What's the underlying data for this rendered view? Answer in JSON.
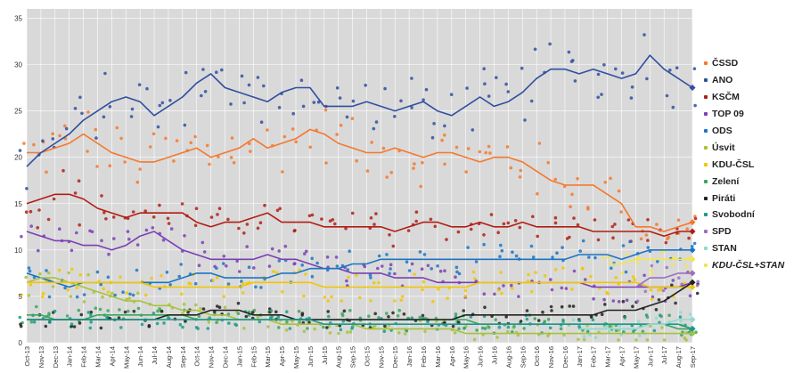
{
  "chart_data": {
    "type": "line",
    "title": "",
    "xlabel": "",
    "ylabel": "",
    "ylim": [
      0,
      36
    ],
    "yticks": [
      0,
      5,
      10,
      15,
      20,
      25,
      30,
      35
    ],
    "x_tick_labels": [
      "Oct-13",
      "Nov-13",
      "Dec-13",
      "Jan-14",
      "Feb-14",
      "Mar-14",
      "Apr-14",
      "May-14",
      "Jun-14",
      "Jul-14",
      "Aug-14",
      "Sep-14",
      "Oct-14",
      "Nov-14",
      "Dec-14",
      "Jan-15",
      "Feb-15",
      "Mar-15",
      "Apr-15",
      "May-15",
      "Jun-15",
      "Jul-15",
      "Aug-15",
      "Sep-15",
      "Oct-15",
      "Nov-15",
      "Dec-15",
      "Jan-16",
      "Feb-16",
      "Mar-16",
      "Apr-16",
      "May-16",
      "Jun-16",
      "Jul-16",
      "Aug-16",
      "Sep-16",
      "Oct-16",
      "Nov-16",
      "Dec-16",
      "Jan-17",
      "Feb-17",
      "Mar-17",
      "Apr-17",
      "May-17",
      "Jun-17",
      "Jul-17",
      "Aug-17",
      "Sep-17"
    ],
    "plot_background": "#d9d9d9",
    "grid": true,
    "legend_position": "right",
    "markers": "scattered poll points around trend lines",
    "series": [
      {
        "name": "ČSSD",
        "color": "#f5782d",
        "values": [
          20.5,
          20.5,
          21,
          21.5,
          22.5,
          21.5,
          20.5,
          20,
          19.5,
          19.5,
          20,
          20.5,
          21,
          20,
          20.5,
          21,
          22,
          21,
          21.5,
          22,
          23,
          22.5,
          21.5,
          21,
          20.5,
          20.5,
          21,
          20.5,
          20,
          20.5,
          20.5,
          20,
          19.5,
          20,
          20,
          19.5,
          18.5,
          17.5,
          17,
          17,
          17,
          16,
          15,
          12.5,
          12.5,
          12,
          12.5,
          13
        ]
      },
      {
        "name": "ANO",
        "color": "#2f4fa0",
        "values": [
          19,
          20.5,
          21.5,
          22.5,
          24,
          25,
          26,
          26.5,
          26,
          24.5,
          25.5,
          26.5,
          28,
          29,
          27.5,
          27,
          26.5,
          26,
          27,
          27.5,
          27.5,
          25.5,
          25.5,
          25.5,
          26,
          25.5,
          25,
          25.5,
          26,
          25,
          24.5,
          25.5,
          26.5,
          25.5,
          26,
          27,
          28.5,
          29.5,
          29.5,
          29,
          29.5,
          29,
          28.5,
          29,
          31,
          29.5,
          28.5,
          27.5
        ]
      },
      {
        "name": "KSČM",
        "color": "#b01e14",
        "values": [
          15,
          15.5,
          16,
          16,
          15.5,
          14.5,
          14,
          13.5,
          14,
          14,
          14,
          14,
          13,
          12.5,
          13,
          13,
          13.5,
          14,
          13,
          13,
          13,
          12.5,
          12.5,
          12.5,
          12.5,
          12.5,
          12,
          12.5,
          13,
          13,
          12.5,
          12.5,
          13,
          12.5,
          12.5,
          13,
          12.5,
          12.5,
          12.5,
          12.5,
          12,
          12,
          12,
          12,
          12,
          11.5,
          12,
          12
        ]
      },
      {
        "name": "TOP 09",
        "color": "#7b3fb4",
        "values": [
          12,
          11.5,
          11,
          11,
          10.5,
          10.5,
          10,
          10.5,
          11.5,
          12,
          11,
          10,
          9.5,
          9,
          9,
          9,
          9,
          9.5,
          9,
          9,
          8.5,
          8,
          8,
          7.5,
          7.5,
          7.5,
          7,
          7,
          7,
          6.5,
          6.5,
          6.5,
          6.5,
          6.5,
          6.5,
          6.5,
          6.5,
          6.5,
          6.5,
          6.5,
          6,
          6,
          6,
          6,
          6,
          6,
          6,
          6.5
        ]
      },
      {
        "name": "ODS",
        "color": "#1a75c4",
        "values": [
          7.5,
          7,
          6.5,
          6,
          6.5,
          6.5,
          6.5,
          6.5,
          6.5,
          6.5,
          6.5,
          7,
          7.5,
          7.5,
          7,
          7,
          7,
          7,
          7.5,
          7.5,
          8,
          8,
          8,
          8.5,
          8.5,
          9,
          9,
          9,
          9,
          9,
          9,
          9,
          9,
          9,
          9,
          9,
          9,
          9,
          9,
          9.5,
          9.5,
          9.5,
          9,
          9.5,
          10,
          10,
          10,
          10
        ]
      },
      {
        "name": "Úsvit",
        "color": "#a8c23a",
        "values": [
          6.5,
          7,
          7,
          6.5,
          6,
          5.5,
          5,
          4.5,
          4.5,
          4,
          4,
          3.5,
          3.5,
          3,
          3,
          2.5,
          2.5,
          2.5,
          2,
          2,
          2,
          2,
          2,
          2,
          1.5,
          1.5,
          1.5,
          1.5,
          1.5,
          1.5,
          1.5,
          1,
          1,
          1,
          1,
          1,
          1,
          1,
          1,
          1,
          1,
          1,
          1,
          1,
          1,
          1,
          1,
          1
        ]
      },
      {
        "name": "KDU-ČSL",
        "color": "#f2c500",
        "values": [
          6.5,
          6.5,
          6.5,
          6.5,
          6.5,
          6.5,
          6.5,
          6.5,
          6.5,
          6,
          6,
          6,
          6,
          6,
          6,
          6,
          6.5,
          6.5,
          6.5,
          6.5,
          6.5,
          6,
          6,
          6,
          6,
          6,
          6,
          6,
          6,
          6,
          6,
          6,
          6.5,
          6.5,
          6.5,
          6.5,
          6.5,
          6.5,
          6.5,
          6.5,
          6.5,
          6.5,
          6.5,
          6.5,
          6,
          6,
          6,
          6
        ]
      },
      {
        "name": "Zelení",
        "color": "#3aa65a",
        "values": [
          3,
          3,
          2.5,
          2.5,
          2.5,
          3,
          3,
          3,
          3,
          3,
          3,
          3,
          2.5,
          2.5,
          2.5,
          2.5,
          2.5,
          2.5,
          2.5,
          2.5,
          2.5,
          2.5,
          2.5,
          2.5,
          2.5,
          2.5,
          2.5,
          2.5,
          2.5,
          2.5,
          2.5,
          2.5,
          2,
          2,
          2,
          2,
          2,
          2,
          2,
          2,
          2,
          2,
          2,
          2,
          2,
          2,
          1.5,
          1.5
        ]
      },
      {
        "name": "Piráti",
        "color": "#222222",
        "values": [
          2.5,
          2.5,
          2.5,
          2.5,
          2.5,
          2.5,
          2.5,
          2.5,
          2.5,
          2.5,
          3,
          3,
          3,
          3.5,
          3.5,
          3.5,
          3,
          3,
          3,
          2.5,
          2.5,
          2.5,
          2.5,
          2.5,
          2.5,
          2.5,
          2.5,
          2.5,
          2.5,
          2.5,
          2.5,
          3,
          3,
          3,
          3,
          3,
          3,
          3,
          3,
          3,
          3,
          3.5,
          3.5,
          3.5,
          4,
          4.5,
          5.5,
          6.5
        ]
      },
      {
        "name": "Svobodní",
        "color": "#1c9a8a",
        "values": [
          2.5,
          2.5,
          2.5,
          2.5,
          2.5,
          2.5,
          2.5,
          2.5,
          2.5,
          2.5,
          2.5,
          2.5,
          2.5,
          2.5,
          2.5,
          2.5,
          2.5,
          2.5,
          2.5,
          2.5,
          2.5,
          2,
          2,
          2,
          2,
          2,
          2,
          2,
          2,
          2,
          2,
          2,
          2,
          2,
          2,
          2,
          2,
          2,
          2,
          2,
          2,
          2,
          2,
          2,
          2,
          2,
          2,
          1.5
        ]
      },
      {
        "name": "SPD",
        "color": "#9a6fc4",
        "values": [
          null,
          null,
          null,
          null,
          null,
          null,
          null,
          null,
          null,
          null,
          null,
          null,
          null,
          null,
          null,
          null,
          null,
          null,
          null,
          null,
          null,
          null,
          null,
          null,
          null,
          null,
          null,
          null,
          null,
          null,
          null,
          null,
          null,
          null,
          null,
          null,
          null,
          null,
          null,
          null,
          null,
          null,
          null,
          6,
          7,
          7,
          7.5,
          7.5
        ]
      },
      {
        "name": "STAN",
        "color": "#8fd9d0",
        "values": [
          null,
          null,
          null,
          null,
          null,
          null,
          null,
          null,
          null,
          null,
          null,
          null,
          null,
          null,
          null,
          null,
          null,
          null,
          null,
          null,
          null,
          null,
          null,
          null,
          null,
          null,
          null,
          null,
          null,
          null,
          null,
          null,
          null,
          null,
          null,
          null,
          null,
          null,
          null,
          1.5,
          1.5,
          1.5,
          1.5,
          1.5,
          2,
          2,
          2.5,
          2.5
        ]
      },
      {
        "name": "KDU-ČSL+STAN",
        "color": "#f2e64a",
        "italic": true,
        "values": [
          null,
          null,
          null,
          null,
          null,
          null,
          null,
          null,
          null,
          null,
          null,
          null,
          null,
          null,
          null,
          null,
          null,
          null,
          null,
          null,
          null,
          null,
          null,
          null,
          null,
          null,
          null,
          null,
          null,
          null,
          null,
          null,
          null,
          null,
          null,
          null,
          null,
          null,
          null,
          null,
          null,
          8.5,
          8.5,
          9,
          9,
          9,
          9,
          9
        ]
      }
    ]
  }
}
